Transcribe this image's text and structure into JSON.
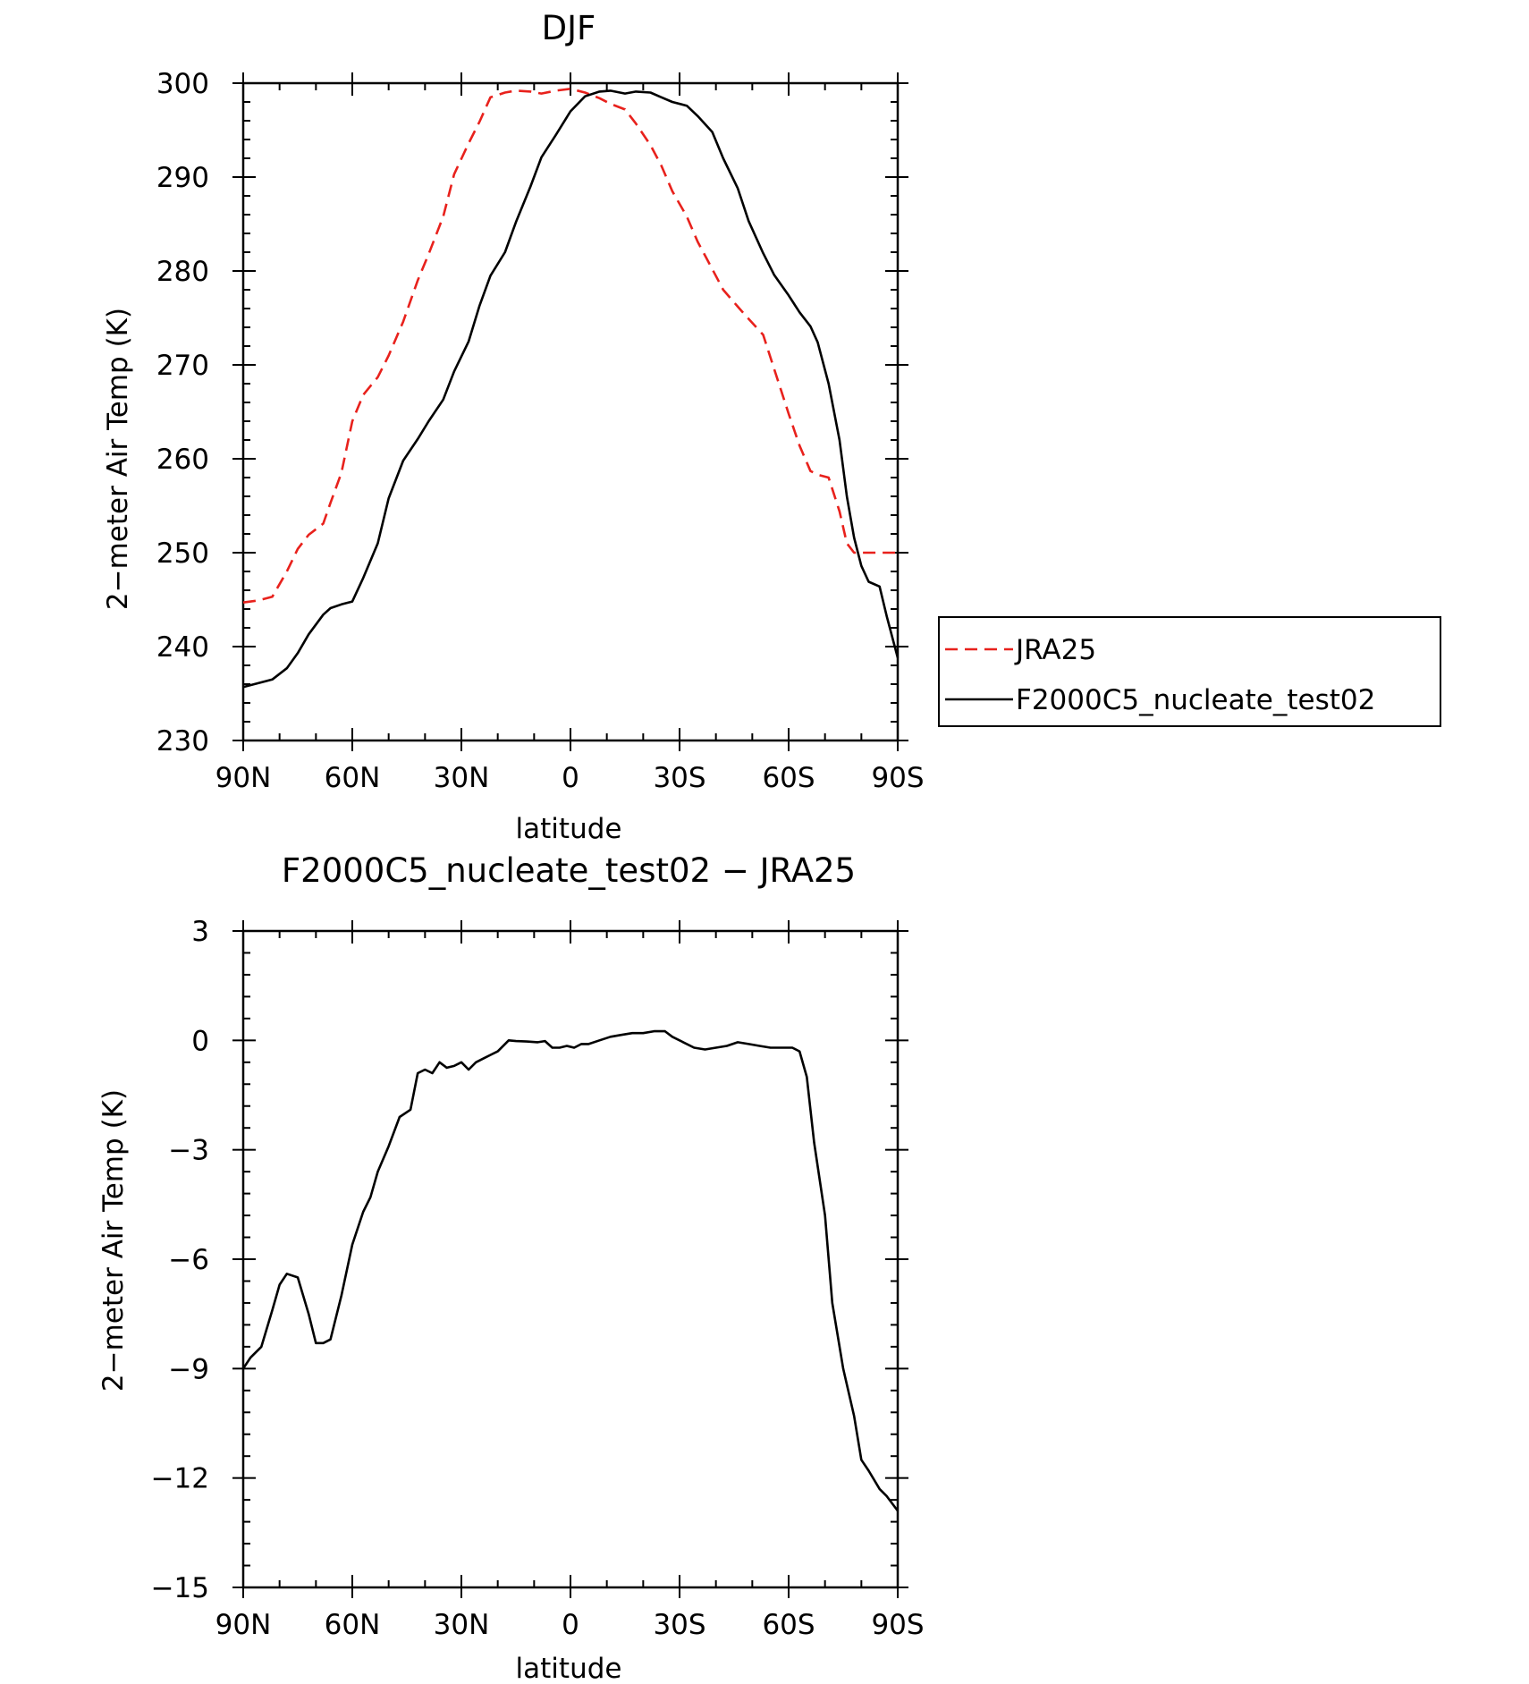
{
  "chart_data": [
    {
      "type": "line",
      "title": "DJF",
      "xlabel": "latitude",
      "ylabel": "2−meter Air Temp (K)",
      "x_ticks": [
        90,
        60,
        30,
        0,
        -30,
        -60,
        -90
      ],
      "x_tick_labels": [
        "90N",
        "60N",
        "30N",
        "0",
        "30S",
        "60S",
        "90S"
      ],
      "xlim": [
        90,
        -90
      ],
      "ylim": [
        230,
        300
      ],
      "y_ticks": [
        230,
        240,
        250,
        260,
        270,
        280,
        290,
        300
      ],
      "y_tick_labels": [
        "230",
        "240",
        "250",
        "260",
        "270",
        "280",
        "290",
        "300"
      ],
      "x": [
        90,
        86,
        82,
        78,
        75,
        72,
        68,
        66,
        63,
        60,
        57,
        53,
        50,
        46,
        42,
        39,
        35,
        32,
        28,
        25,
        22,
        18,
        15,
        11,
        8,
        4,
        0,
        -4,
        -8,
        -11,
        -15,
        -18,
        -22,
        -25,
        -28,
        -32,
        -35,
        -39,
        -42,
        -46,
        -49,
        -53,
        -56,
        -60,
        -63,
        -66,
        -68,
        -71,
        -74,
        -76,
        -78,
        -80,
        -82,
        -85,
        -87,
        -90
      ],
      "legend": {
        "position": "right"
      },
      "series": [
        {
          "name": "JRA25",
          "color": "#e8211c",
          "dash": "dashed",
          "values": [
            244.7,
            244.9,
            245.3,
            248.0,
            250.4,
            251.9,
            253.1,
            255.3,
            258.5,
            264.0,
            266.8,
            268.7,
            271.0,
            274.6,
            279.0,
            281.8,
            285.8,
            290.3,
            293.6,
            295.9,
            298.5,
            299.0,
            299.2,
            299.1,
            298.9,
            299.2,
            299.4,
            299.0,
            298.4,
            297.8,
            297.2,
            295.7,
            293.4,
            291.2,
            288.5,
            285.8,
            283.1,
            280.2,
            278.0,
            276.2,
            274.9,
            273.2,
            269.6,
            264.8,
            261.4,
            258.7,
            258.3,
            258.0,
            254.4,
            251.0,
            250.0,
            250.0,
            250.0,
            250.0,
            250.0,
            250.0
          ]
        },
        {
          "name": "F2000C5_nucleate_test02",
          "color": "#000000",
          "dash": "solid",
          "values": [
            235.7,
            236.1,
            236.5,
            237.7,
            239.3,
            241.3,
            243.4,
            244.1,
            244.5,
            244.8,
            247.3,
            251.0,
            255.8,
            259.8,
            262.1,
            264.0,
            266.3,
            269.3,
            272.5,
            276.3,
            279.5,
            282.0,
            285.2,
            289.0,
            292.1,
            294.5,
            297.0,
            298.6,
            299.1,
            299.2,
            298.9,
            299.1,
            299.0,
            298.5,
            298.0,
            297.6,
            296.5,
            294.8,
            292.0,
            288.8,
            285.3,
            281.9,
            279.6,
            277.4,
            275.6,
            274.1,
            272.4,
            268.0,
            262.0,
            256.0,
            251.6,
            248.6,
            246.9,
            246.4,
            243.2,
            238.8
          ]
        }
      ]
    },
    {
      "type": "line",
      "title": "F2000C5_nucleate_test02 − JRA25",
      "xlabel": "latitude",
      "ylabel": "2−meter Air Temp (K)",
      "x_ticks": [
        90,
        60,
        30,
        0,
        -30,
        -60,
        -90
      ],
      "x_tick_labels": [
        "90N",
        "60N",
        "30N",
        "0",
        "30S",
        "60S",
        "90S"
      ],
      "xlim": [
        90,
        -90
      ],
      "ylim": [
        -15,
        3
      ],
      "y_ticks": [
        -15,
        -12,
        -9,
        -6,
        -3,
        0,
        3
      ],
      "y_tick_labels": [
        "−15",
        "−12",
        "−9",
        "−6",
        "−3",
        "0",
        "3"
      ],
      "x": [
        90,
        88,
        85,
        82,
        80,
        78,
        75,
        72,
        70,
        68,
        66,
        63,
        60,
        57,
        55,
        53,
        50,
        47,
        44,
        42,
        40,
        38,
        36,
        34,
        32,
        30,
        28,
        26,
        24,
        22,
        20,
        17,
        15,
        12,
        9,
        7,
        5,
        3,
        1,
        -1,
        -3,
        -5,
        -8,
        -11,
        -14,
        -17,
        -20,
        -23,
        -26,
        -28,
        -31,
        -34,
        -37,
        -40,
        -43,
        -46,
        -49,
        -52,
        -55,
        -58,
        -61,
        -63,
        -65,
        -67,
        -70,
        -72,
        -75,
        -78,
        -80,
        -82,
        -85,
        -87,
        -90
      ],
      "series": [
        {
          "name": "",
          "color": "#000000",
          "dash": "solid",
          "values": [
            -9.0,
            -8.7,
            -8.4,
            -7.4,
            -6.7,
            -6.4,
            -6.5,
            -7.5,
            -8.3,
            -8.3,
            -8.2,
            -7.0,
            -5.6,
            -4.7,
            -4.3,
            -3.6,
            -2.9,
            -2.1,
            -1.9,
            -0.9,
            -0.8,
            -0.9,
            -0.6,
            -0.75,
            -0.7,
            -0.6,
            -0.8,
            -0.6,
            -0.5,
            -0.4,
            -0.3,
            0.0,
            -0.02,
            -0.03,
            -0.05,
            -0.02,
            -0.2,
            -0.2,
            -0.15,
            -0.2,
            -0.1,
            -0.1,
            0.0,
            0.1,
            0.15,
            0.2,
            0.2,
            0.25,
            0.25,
            0.1,
            -0.05,
            -0.2,
            -0.25,
            -0.2,
            -0.15,
            -0.05,
            -0.1,
            -0.15,
            -0.2,
            -0.2,
            -0.2,
            -0.3,
            -1.0,
            -2.8,
            -4.8,
            -7.2,
            -9.0,
            -10.3,
            -11.5,
            -11.8,
            -12.3,
            -12.5,
            -12.9
          ]
        }
      ]
    }
  ]
}
